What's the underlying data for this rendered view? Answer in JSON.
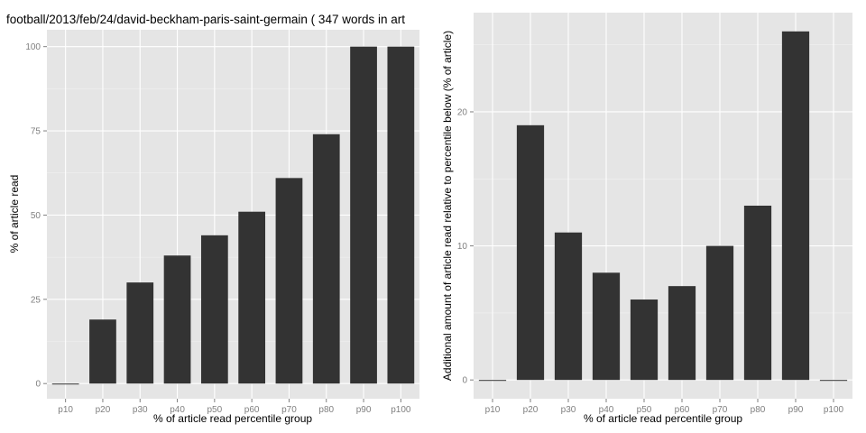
{
  "chart_data": [
    {
      "type": "bar",
      "title": "football/2013/feb/24/david-beckham-paris-saint-germain ( 347 words in art",
      "xlabel": "% of article read percentile group",
      "ylabel": "% of article read",
      "categories": [
        "p10",
        "p20",
        "p30",
        "p40",
        "p50",
        "p60",
        "p70",
        "p80",
        "p90",
        "p100"
      ],
      "values": [
        0,
        19,
        30,
        38,
        44,
        51,
        61,
        74,
        100,
        100
      ],
      "ylim": [
        -4.5,
        105
      ],
      "yticks": [
        0,
        25,
        50,
        75,
        100
      ],
      "grid": true,
      "bar_color": "#333333",
      "panel_color": "#e5e5e5"
    },
    {
      "type": "bar",
      "title": "",
      "xlabel": "% of article read percentile group",
      "ylabel": "Additional amount of article read relative to percentile below (% of article)",
      "categories": [
        "p10",
        "p20",
        "p30",
        "p40",
        "p50",
        "p60",
        "p70",
        "p80",
        "p90",
        "p100"
      ],
      "values": [
        0,
        19,
        11,
        8,
        6,
        7,
        10,
        13,
        26,
        0
      ],
      "ylim": [
        -1.4,
        27.4
      ],
      "yticks": [
        0,
        10,
        20
      ],
      "grid": true,
      "bar_color": "#333333",
      "panel_color": "#e5e5e5"
    }
  ]
}
